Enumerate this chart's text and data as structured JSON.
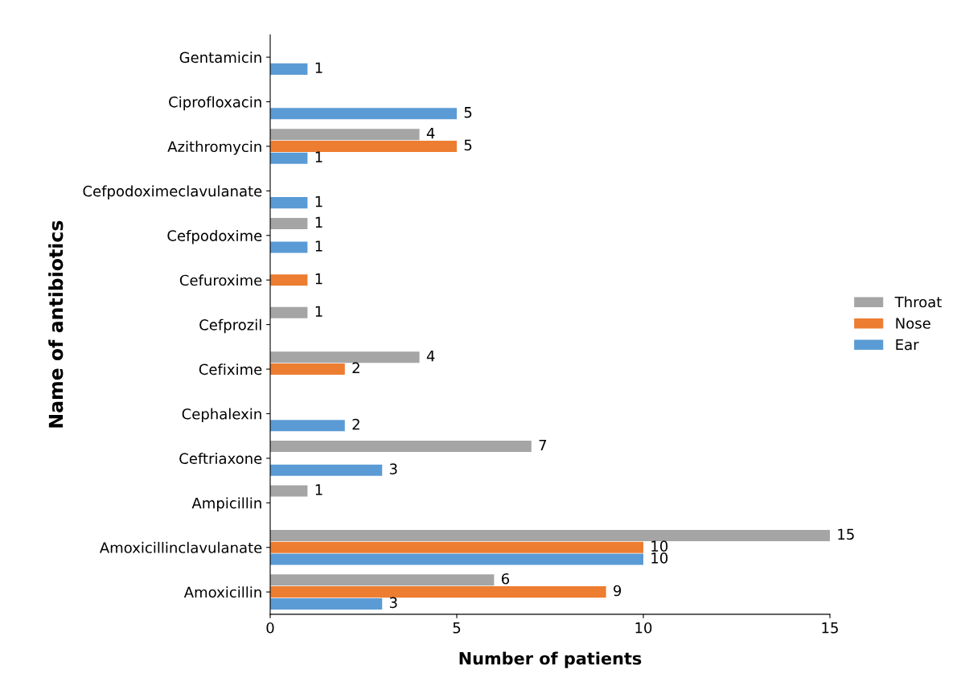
{
  "chart_data": {
    "type": "bar",
    "orientation": "horizontal",
    "xlabel": "Number of patients",
    "ylabel": "Name of antibiotics",
    "categories": [
      "Gentamicin",
      "Ciprofloxacin",
      "Azithromycin",
      "Cefpodoximeclavulanate",
      "Cefpodoxime",
      "Cefuroxime",
      "Cefprozil",
      "Cefixime",
      "Cephalexin",
      "Ceftriaxone",
      "Ampicillin",
      "Amoxicillinclavulanate",
      "Amoxicillin"
    ],
    "series": [
      {
        "name": "Ear",
        "color": "#5b9bd5",
        "values": [
          1,
          5,
          1,
          1,
          1,
          0,
          0,
          0,
          2,
          3,
          0,
          10,
          3
        ],
        "value_labels": [
          "1",
          "5",
          "1",
          "1",
          "1",
          null,
          null,
          null,
          "2",
          "3",
          null,
          "10",
          "3"
        ]
      },
      {
        "name": "Nose",
        "color": "#ed7d31",
        "values": [
          0,
          0,
          5,
          0,
          0,
          1,
          0,
          2,
          0,
          0,
          0,
          10,
          9
        ],
        "value_labels": [
          null,
          null,
          "5",
          null,
          null,
          "1",
          null,
          "2",
          null,
          null,
          null,
          "10",
          "9"
        ]
      },
      {
        "name": "Throat",
        "color": "#a5a5a5",
        "values": [
          0,
          0,
          4,
          0,
          1,
          0,
          1,
          4,
          0,
          7,
          1,
          15,
          6
        ],
        "value_labels": [
          null,
          null,
          "4",
          null,
          "1",
          null,
          "1",
          "4",
          null,
          "7",
          "1",
          "15",
          "6"
        ]
      }
    ],
    "xlim": [
      0,
      15
    ],
    "xticks": [
      0,
      5,
      10,
      15
    ],
    "grid": false,
    "legend": "right"
  }
}
